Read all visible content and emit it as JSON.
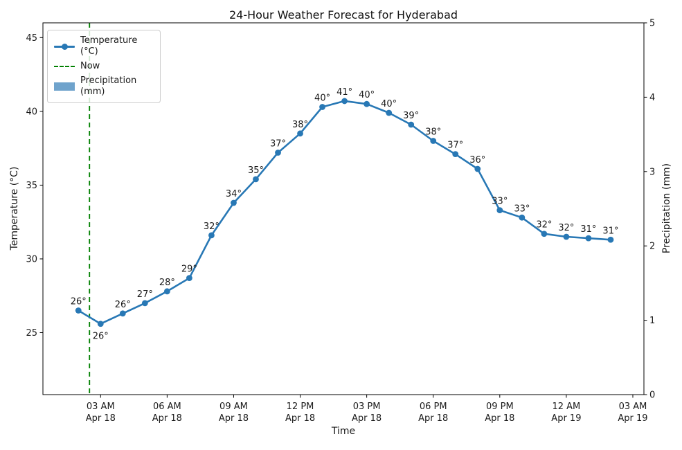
{
  "figure": {
    "title": "24-Hour Weather Forecast for Hyderabad",
    "xlabel": "Time",
    "ylabel_left": "Temperature (°C)",
    "ylabel_right": "Precipitation (mm)"
  },
  "legend": {
    "items": [
      {
        "label": "Temperature (°C)",
        "swatch": "line-marker-sample",
        "color": "#2878b5"
      },
      {
        "label": "Now",
        "swatch": "dashed-line-sample",
        "color": "#008000"
      },
      {
        "label": "Precipitation (mm)",
        "swatch": "patch-sample",
        "color": "#6fa3cc"
      }
    ]
  },
  "chart_data": {
    "type": "line",
    "title": "24-Hour Weather Forecast for Hyderabad",
    "xlabel": "Time",
    "ylabel": "Temperature (°C)",
    "ylabel_right": "Precipitation (mm)",
    "legend": [
      "Temperature (°C)",
      "Now",
      "Precipitation (mm)"
    ],
    "legend_position": "upper left",
    "grid": false,
    "x_hours": [
      2,
      3,
      4,
      5,
      6,
      7,
      8,
      9,
      10,
      11,
      12,
      13,
      14,
      15,
      16,
      17,
      18,
      19,
      20,
      21,
      22,
      23,
      24,
      25,
      26
    ],
    "temps_c": [
      26.5,
      25.6,
      26.3,
      27.0,
      27.8,
      28.7,
      31.6,
      33.8,
      35.4,
      37.2,
      38.5,
      40.3,
      40.7,
      40.5,
      39.9,
      39.1,
      38.0,
      37.1,
      36.1,
      33.3,
      32.8,
      31.7,
      31.5,
      31.4,
      31.3
    ],
    "point_labels": [
      "26°",
      "26°",
      "26°",
      "27°",
      "28°",
      "29°",
      "32°",
      "34°",
      "35°",
      "37°",
      "38°",
      "40°",
      "41°",
      "40°",
      "40°",
      "39°",
      "38°",
      "37°",
      "36°",
      "33°",
      "33°",
      "32°",
      "32°",
      "31°",
      "31°"
    ],
    "label_placement": [
      "above",
      "below",
      "above",
      "above",
      "above",
      "above",
      "above",
      "above",
      "above",
      "above",
      "above",
      "above",
      "above",
      "above",
      "above",
      "above",
      "above",
      "above",
      "above",
      "above",
      "above",
      "above",
      "above",
      "above",
      "above"
    ],
    "precipitation_mm": [
      0,
      0,
      0,
      0,
      0,
      0,
      0,
      0,
      0,
      0,
      0,
      0,
      0,
      0,
      0,
      0,
      0,
      0,
      0,
      0,
      0,
      0,
      0,
      0,
      0
    ],
    "now_hour": 2.5,
    "x_ticks": [
      {
        "hour": 3,
        "time": "03 AM",
        "date": "Apr 18"
      },
      {
        "hour": 6,
        "time": "06 AM",
        "date": "Apr 18"
      },
      {
        "hour": 9,
        "time": "09 AM",
        "date": "Apr 18"
      },
      {
        "hour": 12,
        "time": "12 PM",
        "date": "Apr 18"
      },
      {
        "hour": 15,
        "time": "03 PM",
        "date": "Apr 18"
      },
      {
        "hour": 18,
        "time": "06 PM",
        "date": "Apr 18"
      },
      {
        "hour": 21,
        "time": "09 PM",
        "date": "Apr 18"
      },
      {
        "hour": 24,
        "time": "12 AM",
        "date": "Apr 19"
      },
      {
        "hour": 27,
        "time": "03 AM",
        "date": "Apr 19"
      }
    ],
    "y_ticks_left": [
      25,
      30,
      35,
      40,
      45
    ],
    "y_ticks_right": [
      0,
      1,
      2,
      3,
      4,
      5
    ],
    "ylim_left": [
      20.8,
      46.0
    ],
    "ylim_right": [
      0,
      5
    ],
    "xlim_hours": [
      0.4,
      27.5
    ],
    "colors": {
      "temperature_line": "#2878b5",
      "now_line": "#008000",
      "precipitation": "#6fa3cc",
      "text": "#1a1a1a",
      "spine": "#000000"
    }
  }
}
